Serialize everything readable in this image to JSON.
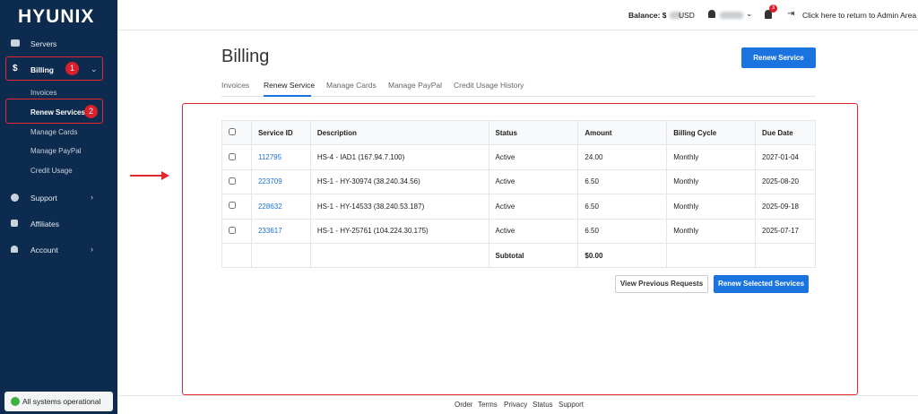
{
  "sidebar": {
    "logo": "HYUNIX",
    "servers": "Servers",
    "billing": "Billing",
    "billing_badge": "1",
    "billing_sub": [
      "Invoices",
      "Renew Services",
      "Manage Cards",
      "Manage PayPal",
      "Credit Usage"
    ],
    "renew_badge": "2",
    "support": "Support",
    "affiliates": "Affiliates",
    "account": "Account",
    "status": "All systems operational"
  },
  "topbar": {
    "balance_prefix": "Balance: $",
    "balance_suffix": "USD",
    "notifications": "3",
    "admin_link": "Click here to return to Admin Area"
  },
  "header": {
    "title": "Billing",
    "button": "Renew Service"
  },
  "tabs": [
    "Invoices",
    "Renew Service",
    "Manage Cards",
    "Manage PayPal",
    "Credit Usage History"
  ],
  "table": {
    "columns": [
      "Service ID",
      "Description",
      "Status",
      "Amount",
      "Billing Cycle",
      "Due Date"
    ],
    "rows": [
      [
        "112795",
        "HS-4 - IAD1 (167.94.7.100)",
        "Active",
        "24.00",
        "Monthly",
        "2027-01-04"
      ],
      [
        "223709",
        "HS-1 - HY-30974 (38.240.34.56)",
        "Active",
        "6.50",
        "Monthly",
        "2025-08-20"
      ],
      [
        "228632",
        "HS-1 - HY-14533 (38.240.53.187)",
        "Active",
        "6.50",
        "Monthly",
        "2025-09-18"
      ],
      [
        "233617",
        "HS-1 - HY-25761 (104.224.30.175)",
        "Active",
        "6.50",
        "Monthly",
        "2025-07-17"
      ]
    ],
    "subtotal_label": "Subtotal",
    "subtotal_value": "$0.00"
  },
  "actions": [
    "View Previous Requests",
    "Renew Selected Services"
  ],
  "footer": [
    "Order",
    "Terms",
    "Privacy",
    "Status",
    "Support"
  ]
}
